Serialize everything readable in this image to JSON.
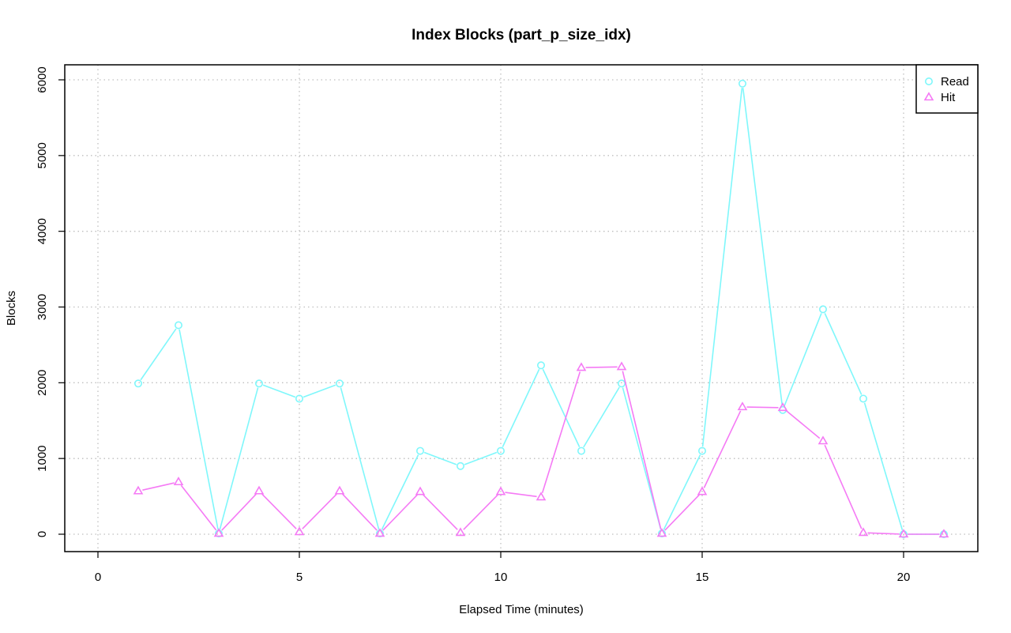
{
  "chart_data": {
    "type": "line",
    "title": "Index Blocks (part_p_size_idx)",
    "xlabel": "Elapsed Time (minutes)",
    "ylabel": "Blocks",
    "xlim": [
      0,
      21
    ],
    "ylim": [
      0,
      6000
    ],
    "xticks": [
      0,
      5,
      10,
      15,
      20
    ],
    "yticks": [
      0,
      1000,
      2000,
      3000,
      4000,
      5000,
      6000
    ],
    "grid": true,
    "legend_position": "top-right",
    "x": [
      1,
      2,
      3,
      4,
      5,
      6,
      7,
      8,
      9,
      10,
      11,
      12,
      13,
      14,
      15,
      16,
      17,
      18,
      19,
      20,
      21
    ],
    "series": [
      {
        "name": "Read",
        "color": "#7ff7fb",
        "marker": "circle",
        "values": [
          1990,
          2760,
          10,
          1990,
          1790,
          1990,
          10,
          1100,
          900,
          1100,
          2230,
          1100,
          1990,
          10,
          1100,
          5950,
          1640,
          2970,
          1790,
          0,
          0
        ]
      },
      {
        "name": "Hit",
        "color": "#f57af5",
        "marker": "triangle",
        "values": [
          570,
          690,
          10,
          570,
          30,
          570,
          10,
          560,
          20,
          560,
          490,
          2200,
          2210,
          10,
          560,
          1680,
          1670,
          1230,
          20,
          0,
          0
        ]
      }
    ]
  }
}
